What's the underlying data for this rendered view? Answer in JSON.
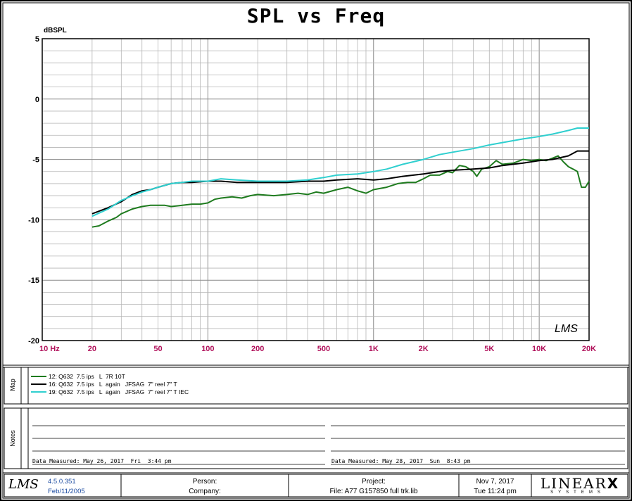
{
  "chart_data": {
    "type": "line",
    "title": "SPL vs Freq",
    "ylabel": "dBSPL",
    "xlabel": "",
    "x_scale": "log",
    "xlim": [
      10,
      20000
    ],
    "ylim": [
      -20,
      5
    ],
    "grid": true,
    "x_ticks": [
      {
        "value": 10,
        "label": "10 Hz"
      },
      {
        "value": 20,
        "label": "20"
      },
      {
        "value": 50,
        "label": "50"
      },
      {
        "value": 100,
        "label": "100"
      },
      {
        "value": 200,
        "label": "200"
      },
      {
        "value": 500,
        "label": "500"
      },
      {
        "value": 1000,
        "label": "1K"
      },
      {
        "value": 2000,
        "label": "2K"
      },
      {
        "value": 5000,
        "label": "5K"
      },
      {
        "value": 10000,
        "label": "10K"
      },
      {
        "value": 20000,
        "label": "20K"
      }
    ],
    "y_ticks": [
      {
        "value": 5,
        "label": "5"
      },
      {
        "value": 0,
        "label": "0"
      },
      {
        "value": -5,
        "label": "-5"
      },
      {
        "value": -10,
        "label": "-10"
      },
      {
        "value": -15,
        "label": "-15"
      },
      {
        "value": -20,
        "label": "-20"
      }
    ],
    "series": [
      {
        "name": "12: Q632  7.5 ips   L  7R 10T",
        "color": "#1e7b1e",
        "x": [
          20,
          22,
          25,
          28,
          30,
          35,
          40,
          45,
          50,
          55,
          60,
          70,
          80,
          90,
          100,
          110,
          120,
          140,
          160,
          180,
          200,
          250,
          300,
          350,
          400,
          450,
          500,
          600,
          700,
          800,
          900,
          1000,
          1200,
          1400,
          1600,
          1800,
          2000,
          2200,
          2500,
          2800,
          3000,
          3300,
          3600,
          4000,
          4200,
          4500,
          5000,
          5500,
          6000,
          7000,
          8000,
          9000,
          10000,
          11000,
          12000,
          13000,
          14000,
          15000,
          16000,
          17000,
          18000,
          19000,
          20000
        ],
        "y": [
          -10.6,
          -10.5,
          -10.1,
          -9.8,
          -9.5,
          -9.1,
          -8.9,
          -8.8,
          -8.8,
          -8.8,
          -8.9,
          -8.8,
          -8.7,
          -8.7,
          -8.6,
          -8.3,
          -8.2,
          -8.1,
          -8.2,
          -8.0,
          -7.9,
          -8.0,
          -7.9,
          -7.8,
          -7.9,
          -7.7,
          -7.8,
          -7.5,
          -7.3,
          -7.6,
          -7.8,
          -7.5,
          -7.3,
          -7.0,
          -6.9,
          -6.9,
          -6.6,
          -6.3,
          -6.3,
          -6.0,
          -6.1,
          -5.5,
          -5.6,
          -6.0,
          -6.4,
          -5.8,
          -5.6,
          -5.1,
          -5.4,
          -5.3,
          -5.0,
          -5.1,
          -5.0,
          -5.1,
          -4.9,
          -4.7,
          -5.2,
          -5.6,
          -5.8,
          -6.0,
          -7.3,
          -7.3,
          -6.8
        ]
      },
      {
        "name": "16: Q632  7.5 ips   L  again   JFSAG  7\" reel 7\" T",
        "color": "#000000",
        "x": [
          20,
          25,
          30,
          35,
          40,
          45,
          50,
          60,
          70,
          80,
          100,
          120,
          150,
          200,
          250,
          300,
          400,
          500,
          600,
          800,
          1000,
          1200,
          1500,
          2000,
          2500,
          3000,
          4000,
          5000,
          6000,
          8000,
          10000,
          12000,
          15000,
          17000,
          20000
        ],
        "y": [
          -9.5,
          -9.0,
          -8.5,
          -7.9,
          -7.6,
          -7.5,
          -7.3,
          -7.0,
          -6.9,
          -6.9,
          -6.8,
          -6.8,
          -6.9,
          -6.9,
          -6.9,
          -6.9,
          -6.8,
          -6.8,
          -6.7,
          -6.6,
          -6.7,
          -6.6,
          -6.4,
          -6.2,
          -6.0,
          -5.9,
          -5.8,
          -5.7,
          -5.5,
          -5.3,
          -5.1,
          -5.0,
          -4.7,
          -4.3,
          -4.3
        ]
      },
      {
        "name": "19: Q632  7.5 ips   L  again   JFSAG  7\" reel 7\" T IEC",
        "color": "#2fcfcf",
        "x": [
          20,
          25,
          30,
          35,
          40,
          45,
          50,
          60,
          70,
          80,
          100,
          120,
          150,
          200,
          250,
          300,
          400,
          500,
          600,
          800,
          1000,
          1200,
          1500,
          2000,
          2500,
          3000,
          4000,
          5000,
          6000,
          8000,
          10000,
          12000,
          15000,
          17000,
          20000
        ],
        "y": [
          -9.7,
          -9.1,
          -8.4,
          -8.0,
          -7.7,
          -7.5,
          -7.3,
          -7.0,
          -6.9,
          -6.8,
          -6.8,
          -6.6,
          -6.7,
          -6.8,
          -6.8,
          -6.8,
          -6.7,
          -6.5,
          -6.3,
          -6.2,
          -6.0,
          -5.8,
          -5.4,
          -5.0,
          -4.6,
          -4.4,
          -4.1,
          -3.8,
          -3.6,
          -3.3,
          -3.1,
          -2.9,
          -2.6,
          -2.4,
          -2.4
        ]
      }
    ]
  },
  "sections": {
    "map_label": "Map",
    "notes_label": "Notes"
  },
  "notes": {
    "left": "Data Measured: May 26, 2017  Fri  3:44 pm",
    "right": "Data Measured: May 28, 2017  Sun  8:43 pm"
  },
  "footer": {
    "logo": "LMS",
    "version": "4.5.0.351",
    "version_date": "Feb/11/2005",
    "person_label": "Person:",
    "company_label": "Company:",
    "project_label": "Project:",
    "file_label": "File: A77 G157850 full trk.lib",
    "date": "Nov  7, 2017",
    "time": "Tue 11:24 pm",
    "brand_main": "LINEAR",
    "brand_x": "X",
    "brand_sub": "SYSTEMS"
  },
  "watermark": "LMS"
}
